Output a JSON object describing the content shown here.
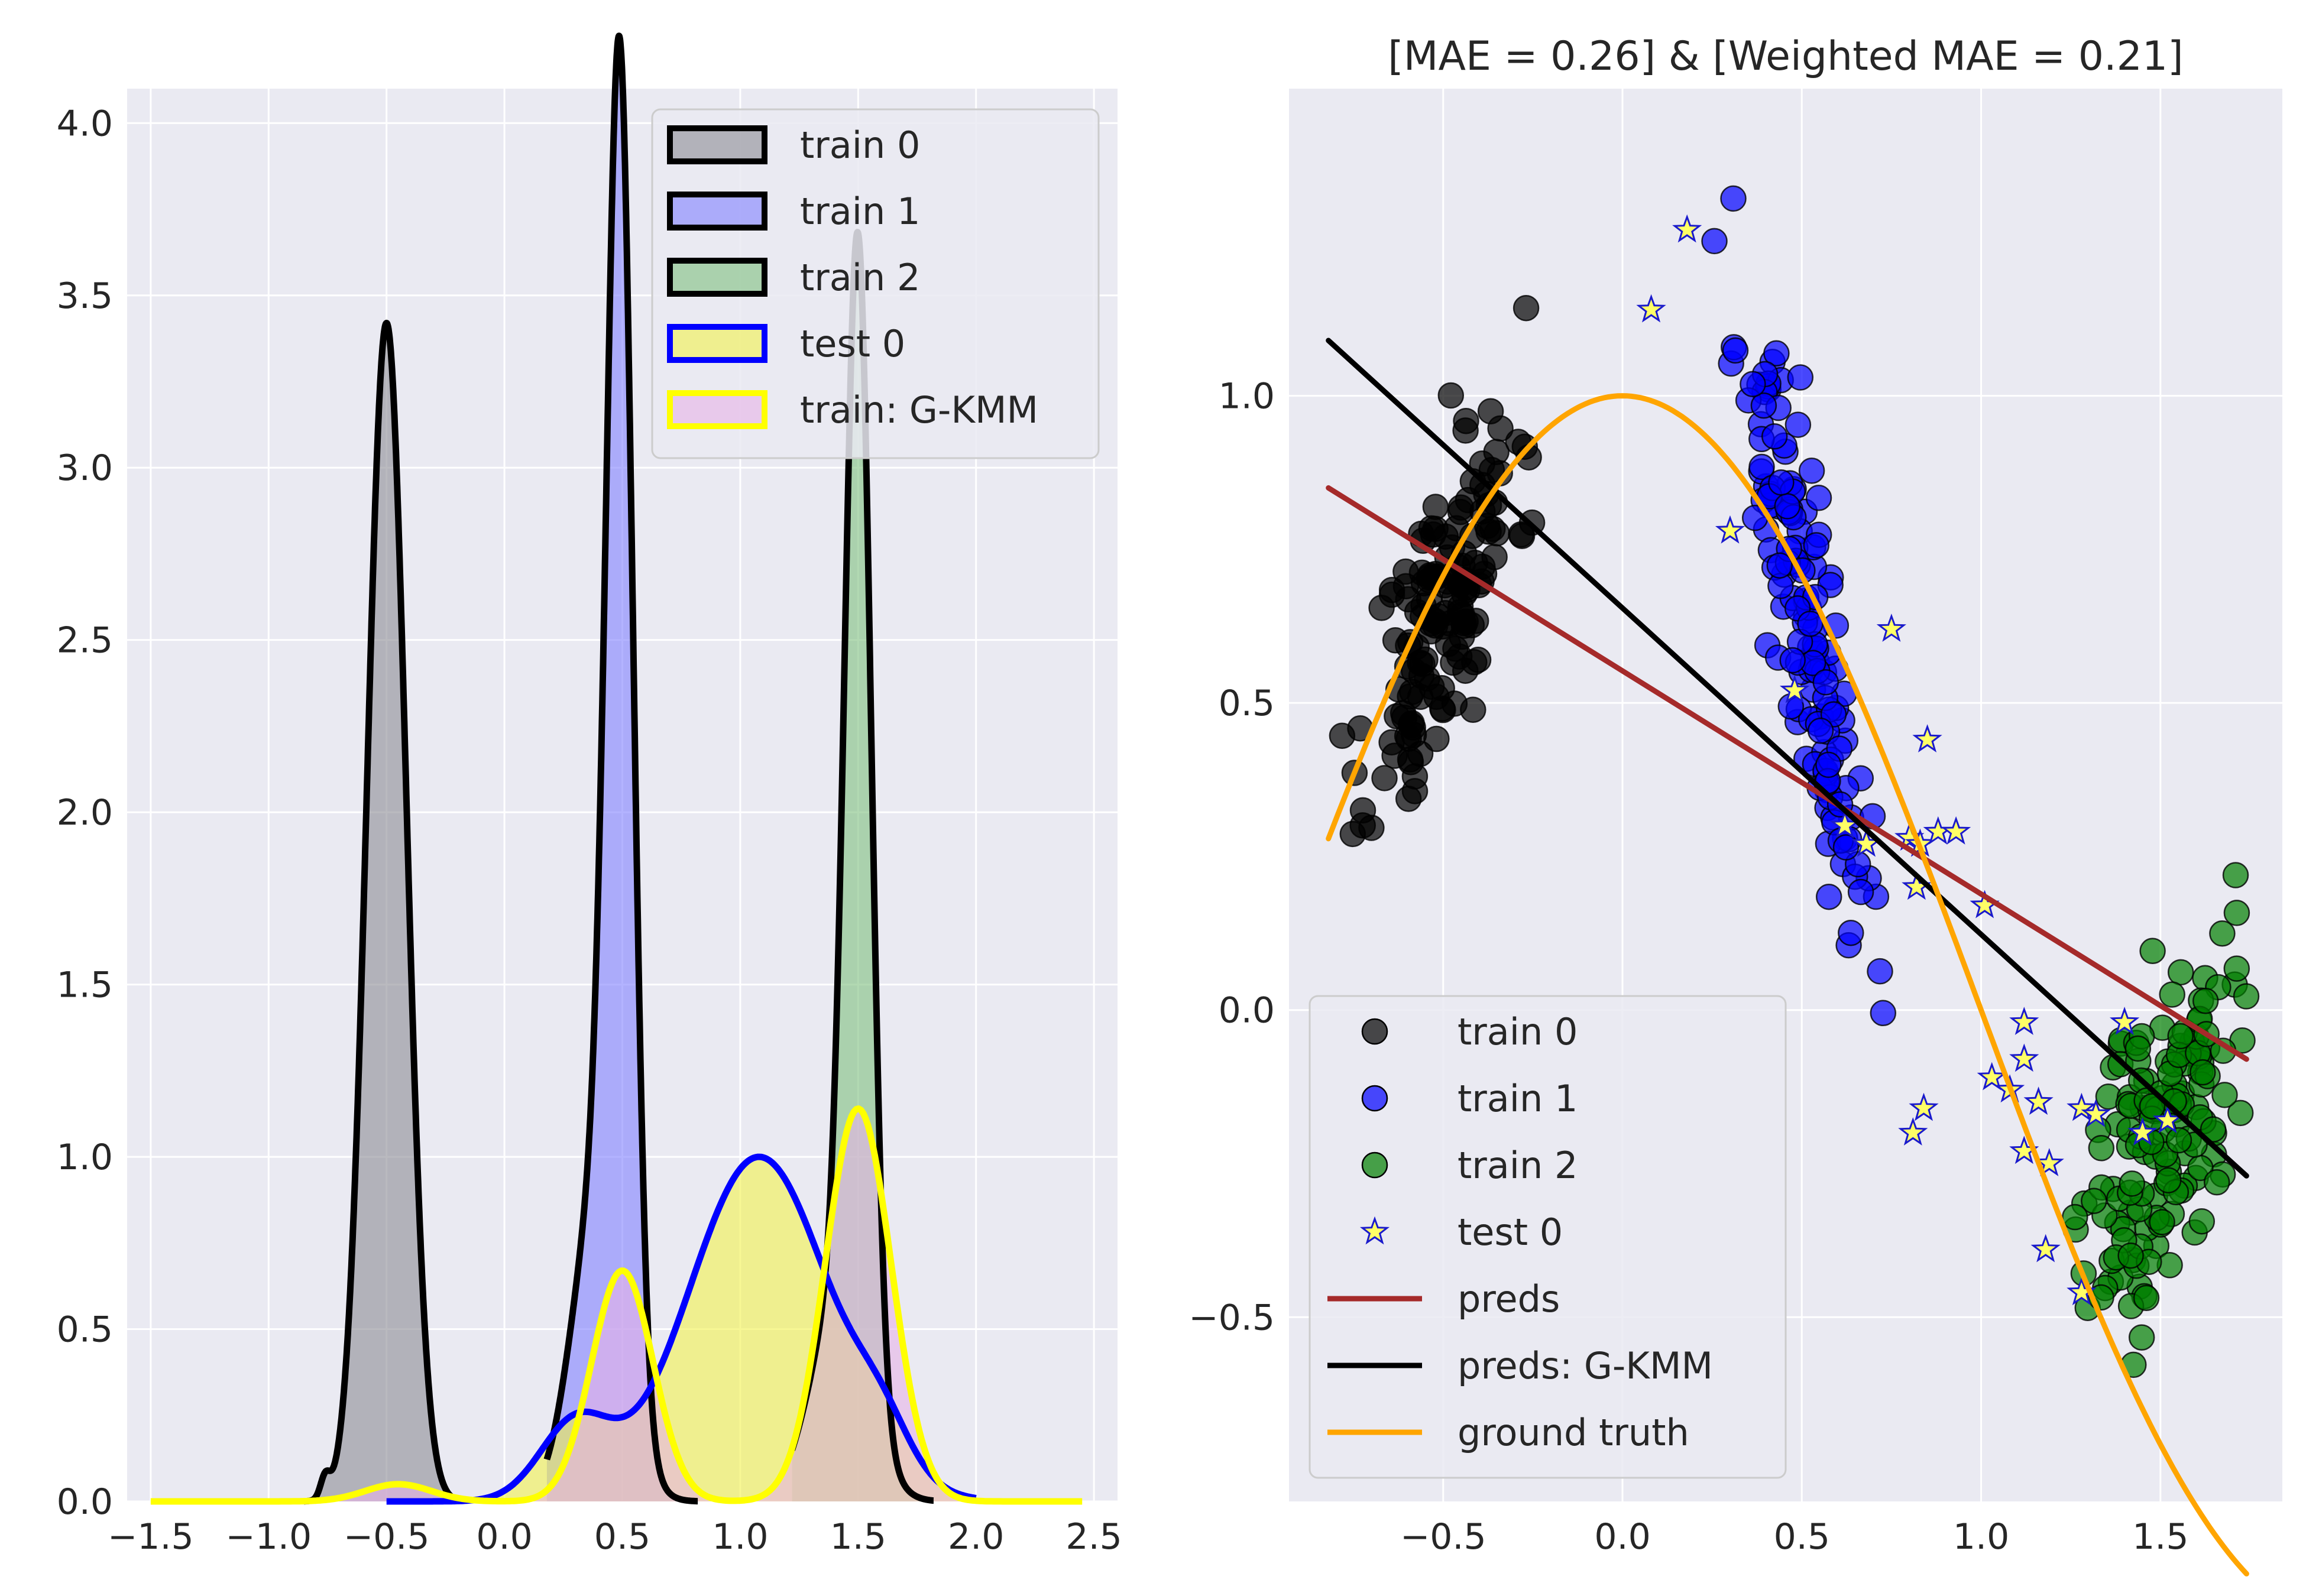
{
  "chart_data": [
    {
      "type": "area",
      "title": "",
      "xlabel": "",
      "ylabel": "",
      "xlim": [
        -1.6,
        2.6
      ],
      "ylim": [
        0,
        4.1
      ],
      "grid": true,
      "x_ticks": [
        -1.5,
        -1.0,
        -0.5,
        0.0,
        0.5,
        1.0,
        1.5,
        2.0,
        2.5
      ],
      "x_tick_labels": [
        "−1.5",
        "−1.0",
        "−0.5",
        "0.0",
        "0.5",
        "1.0",
        "1.5",
        "2.0",
        "2.5"
      ],
      "y_ticks": [
        0.0,
        0.5,
        1.0,
        1.5,
        2.0,
        2.5,
        3.0,
        3.5,
        4.0
      ],
      "y_tick_labels": [
        "0.0",
        "0.5",
        "1.0",
        "1.5",
        "2.0",
        "2.5",
        "3.0",
        "3.5",
        "4.0"
      ],
      "legend_position": "upper-right",
      "series": [
        {
          "name": "train 0",
          "fill": "#8c8c94",
          "edge": "#000000",
          "kind": "kde",
          "components": [
            {
              "mu": -0.5,
              "sigma": 0.083,
              "peak": 3.42
            },
            {
              "mu": -0.76,
              "sigma": 0.02,
              "peak": 0.06
            }
          ],
          "range": [
            -0.85,
            -0.18
          ]
        },
        {
          "name": "train 1",
          "fill": "#8080ff",
          "edge": "#000000",
          "kind": "kde",
          "components": [
            {
              "mu": 0.49,
              "sigma": 0.055,
              "peak": 3.6
            },
            {
              "mu": 0.4,
              "sigma": 0.11,
              "peak": 0.9
            }
          ],
          "range": [
            0.18,
            0.82
          ]
        },
        {
          "name": "train 2",
          "fill": "#7fbf7f",
          "edge": "#000000",
          "kind": "kde",
          "components": [
            {
              "mu": 1.5,
              "sigma": 0.055,
              "peak": 3.2
            },
            {
              "mu": 1.42,
              "sigma": 0.12,
              "peak": 0.6
            }
          ],
          "range": [
            1.22,
            1.82
          ]
        },
        {
          "name": "test 0",
          "fill": "#f2f24c",
          "edge": "#0000ff",
          "kind": "kde",
          "components": [
            {
              "mu": 1.08,
              "sigma": 0.3,
              "peak": 1.0
            },
            {
              "mu": 0.3,
              "sigma": 0.15,
              "peak": 0.22
            },
            {
              "mu": 1.6,
              "sigma": 0.12,
              "peak": 0.12
            }
          ],
          "range": [
            -0.5,
            2.0
          ]
        },
        {
          "name": "train: G-KMM",
          "fill": "#e6b3e6",
          "edge": "#ffff00",
          "kind": "kde",
          "components": [
            {
              "mu": 0.5,
              "sigma": 0.13,
              "peak": 0.67
            },
            {
              "mu": 1.5,
              "sigma": 0.14,
              "peak": 1.14
            },
            {
              "mu": -0.45,
              "sigma": 0.14,
              "peak": 0.05
            }
          ],
          "range": [
            -1.5,
            2.45
          ]
        }
      ]
    },
    {
      "type": "scatter",
      "title": "[MAE = 0.26] & [Weighted MAE = 0.21]",
      "xlabel": "",
      "ylabel": "",
      "xlim": [
        -0.93,
        1.84
      ],
      "ylim": [
        -0.8,
        1.5
      ],
      "grid": true,
      "x_ticks": [
        -0.5,
        0.0,
        0.5,
        1.0,
        1.5
      ],
      "x_tick_labels": [
        "−0.5",
        "0.0",
        "0.5",
        "1.0",
        "1.5"
      ],
      "y_ticks": [
        -0.5,
        0.0,
        0.5,
        1.0
      ],
      "y_tick_labels": [
        "−0.5",
        "0.0",
        "0.5",
        "1.0"
      ],
      "legend_position": "lower-left",
      "clusters": [
        {
          "name": "train 0",
          "color": "#000000",
          "alpha": 0.7,
          "marker": "circle",
          "n": 150,
          "x_mean": -0.5,
          "x_sd": 0.1,
          "slope": 1.1,
          "intercept": 1.2,
          "y_noise": 0.12,
          "seed": 11
        },
        {
          "name": "train 1",
          "color": "#0000ff",
          "alpha": 0.7,
          "marker": "circle",
          "n": 150,
          "x_mean": 0.5,
          "x_sd": 0.09,
          "slope": -2.6,
          "intercept": 1.95,
          "y_noise": 0.12,
          "seed": 23
        },
        {
          "name": "train 2",
          "color": "#007f00",
          "alpha": 0.7,
          "marker": "circle",
          "n": 150,
          "x_mean": 1.5,
          "x_sd": 0.1,
          "slope": 0.9,
          "intercept": -1.55,
          "y_noise": 0.13,
          "seed": 37
        }
      ],
      "test_points": {
        "name": "test 0",
        "face": "#ffff66",
        "edge": "#1a1acc",
        "marker": "star",
        "points": [
          [
            0.08,
            1.14
          ],
          [
            0.18,
            1.27
          ],
          [
            0.3,
            0.78
          ],
          [
            0.48,
            0.52
          ],
          [
            0.62,
            0.3
          ],
          [
            0.68,
            0.27
          ],
          [
            0.75,
            0.62
          ],
          [
            0.8,
            0.28
          ],
          [
            0.83,
            0.27
          ],
          [
            0.85,
            0.44
          ],
          [
            0.88,
            0.29
          ],
          [
            0.93,
            0.29
          ],
          [
            0.82,
            0.2
          ],
          [
            1.01,
            0.17
          ],
          [
            1.03,
            -0.11
          ],
          [
            1.08,
            -0.13
          ],
          [
            1.12,
            -0.02
          ],
          [
            1.12,
            -0.08
          ],
          [
            1.12,
            -0.23
          ],
          [
            1.16,
            -0.15
          ],
          [
            1.19,
            -0.25
          ],
          [
            1.18,
            -0.39
          ],
          [
            1.28,
            -0.16
          ],
          [
            1.28,
            -0.46
          ],
          [
            1.32,
            -0.17
          ],
          [
            1.4,
            -0.02
          ],
          [
            0.81,
            -0.2
          ],
          [
            0.84,
            -0.16
          ],
          [
            1.52,
            -0.18
          ],
          [
            1.45,
            -0.2
          ]
        ]
      },
      "lines": [
        {
          "name": "preds",
          "color": "#a52a2a",
          "x": [
            -0.82,
            1.74
          ],
          "y": [
            0.85,
            -0.08
          ]
        },
        {
          "name": "preds: G-KMM",
          "color": "#000000",
          "x": [
            -0.82,
            1.74
          ],
          "y": [
            1.09,
            -0.27
          ]
        },
        {
          "name": "ground truth",
          "color": "#ffa500",
          "fn": "cos(pi*x/2)",
          "x_range": [
            -0.82,
            1.74
          ]
        }
      ],
      "legend_entries": [
        "train 0",
        "train 1",
        "train 2",
        "test 0",
        "preds",
        "preds: G-KMM",
        "ground truth"
      ]
    }
  ]
}
